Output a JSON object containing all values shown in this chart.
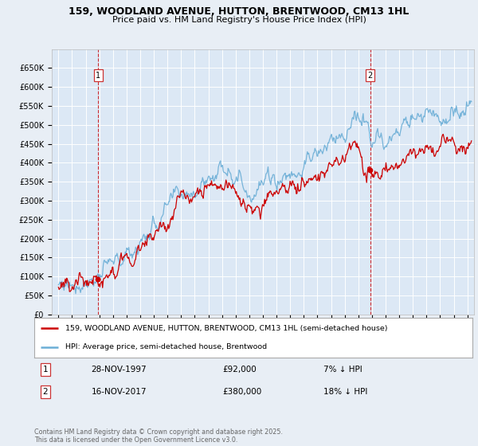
{
  "title_line1": "159, WOODLAND AVENUE, HUTTON, BRENTWOOD, CM13 1HL",
  "title_line2": "Price paid vs. HM Land Registry's House Price Index (HPI)",
  "legend_line1": "159, WOODLAND AVENUE, HUTTON, BRENTWOOD, CM13 1HL (semi-detached house)",
  "legend_line2": "HPI: Average price, semi-detached house, Brentwood",
  "footnote": "Contains HM Land Registry data © Crown copyright and database right 2025.\nThis data is licensed under the Open Government Licence v3.0.",
  "annotation1": {
    "label": "1",
    "date": "28-NOV-1997",
    "price": "£92,000",
    "note": "7% ↓ HPI"
  },
  "annotation2": {
    "label": "2",
    "date": "16-NOV-2017",
    "price": "£380,000",
    "note": "18% ↓ HPI"
  },
  "hpi_color": "#6baed6",
  "price_color": "#cc0000",
  "background_color": "#e8eef5",
  "plot_bg_color": "#dce8f5",
  "grid_color": "#ffffff",
  "ylim": [
    0,
    700000
  ],
  "yticks": [
    0,
    50000,
    100000,
    150000,
    200000,
    250000,
    300000,
    350000,
    400000,
    450000,
    500000,
    550000,
    600000,
    650000
  ],
  "ytick_labels": [
    "£0",
    "£50K",
    "£100K",
    "£150K",
    "£200K",
    "£250K",
    "£300K",
    "£350K",
    "£400K",
    "£450K",
    "£500K",
    "£550K",
    "£600K",
    "£650K"
  ],
  "sale1_x": 1997.91,
  "sale1_y": 92000,
  "sale2_x": 2017.88,
  "sale2_y": 380000,
  "xmin": 1994.5,
  "xmax": 2025.5
}
